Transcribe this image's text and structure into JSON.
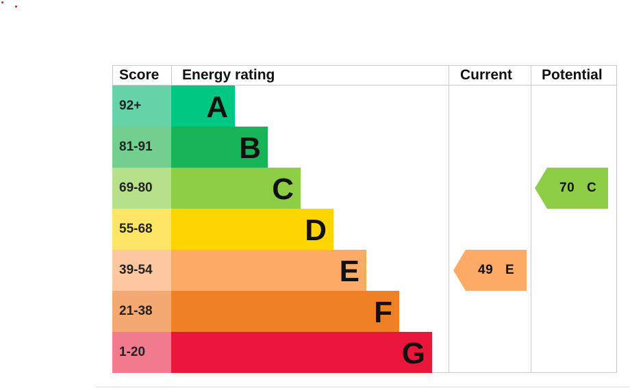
{
  "chart_data": {
    "type": "table",
    "headers": {
      "score": "Score",
      "rating": "Energy rating",
      "current": "Current",
      "potential": "Potential"
    },
    "bands": [
      {
        "score": "92+",
        "letter": "A",
        "color": "#00c781",
        "score_bg": "#66d4a8"
      },
      {
        "score": "81-91",
        "letter": "B",
        "color": "#19b459",
        "score_bg": "#72cf8e"
      },
      {
        "score": "69-80",
        "letter": "C",
        "color": "#8dce46",
        "score_bg": "#b6e08a"
      },
      {
        "score": "55-68",
        "letter": "D",
        "color": "#ffd500",
        "score_bg": "#ffe566"
      },
      {
        "score": "39-54",
        "letter": "E",
        "color": "#fcaa65",
        "score_bg": "#fdc8a0"
      },
      {
        "score": "21-38",
        "letter": "F",
        "color": "#ef8023",
        "score_bg": "#f4a872"
      },
      {
        "score": "1-20",
        "letter": "G",
        "color": "#e9153b",
        "score_bg": "#f27a8f"
      }
    ],
    "current": {
      "value": "49",
      "letter": "E",
      "color": "#fcaa65"
    },
    "potential": {
      "value": "70",
      "letter": "C",
      "color": "#8dce46"
    }
  }
}
